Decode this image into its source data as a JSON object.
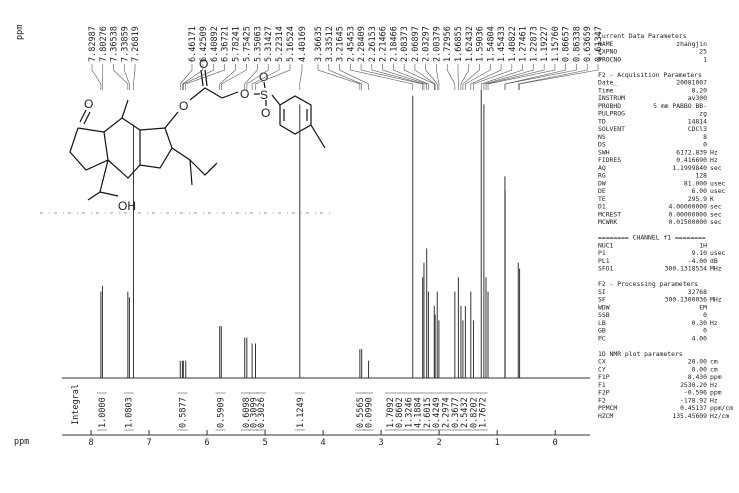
{
  "chart_data": {
    "type": "spectrum",
    "axis_label": "ppm",
    "xlim": [
      8.5,
      -0.6
    ],
    "xticks": [
      8,
      7,
      6,
      5,
      4,
      3,
      2,
      1,
      0
    ],
    "peak_ppm": [
      7.82987,
      7.80276,
      7.36538,
      7.33859,
      7.26819,
      6.46171,
      6.42509,
      6.40892,
      6.36721,
      5.78241,
      5.75425,
      5.35063,
      5.31427,
      5.22314,
      5.16524,
      4.40169,
      3.36635,
      3.33512,
      3.21645,
      2.45453,
      2.28409,
      2.26153,
      2.21466,
      2.18466,
      2.08373,
      2.06897,
      2.03297,
      2.00379,
      1.72956,
      1.66855,
      1.62432,
      1.59036,
      1.54804,
      1.45433,
      1.40822,
      1.27461,
      1.22873,
      1.19227,
      1.1576,
      0.86657,
      0.86338,
      0.63659,
      0.61347
    ],
    "peak_labels": [
      "7.82987",
      "7.80276",
      "7.36538",
      "7.33859",
      "7.26819",
      "6.46171",
      "6.42509",
      "6.40892",
      "6.36721",
      "5.78241",
      "5.75425",
      "5.35063",
      "5.31427",
      "5.22314",
      "5.16524",
      "4.40169",
      "3.36635",
      "3.33512",
      "3.21645",
      "2.45453",
      "2.28409",
      "2.26153",
      "2.21466",
      "2.18466",
      "2.08373",
      "2.06897",
      "2.03297",
      "2.00379",
      "1.72956",
      "1.66855",
      "1.62432",
      "1.59036",
      "1.54804",
      "1.45433",
      "1.40822",
      "1.27461",
      "1.22873",
      "1.19227",
      "1.15760",
      "0.86657",
      "0.86338",
      "0.63659",
      "0.61347"
    ],
    "peak_heights": [
      30,
      32,
      30,
      28,
      88,
      6,
      6,
      6,
      6,
      18,
      18,
      14,
      14,
      12,
      12,
      95,
      10,
      10,
      6,
      98,
      35,
      40,
      45,
      30,
      25,
      22,
      30,
      20,
      30,
      35,
      25,
      20,
      25,
      30,
      20,
      100,
      95,
      35,
      30,
      70,
      65,
      40,
      38
    ],
    "color": "#333333",
    "integral_title": "Integral",
    "integral_ppm": [
      7.81,
      7.35,
      6.42,
      5.77,
      5.33,
      5.2,
      5.07,
      4.4,
      3.36,
      3.22,
      2.85,
      2.69,
      2.53,
      2.37,
      2.21,
      2.05,
      1.89,
      1.73,
      1.57,
      1.41,
      1.25
    ],
    "integral_labels": [
      "1.0000",
      "1.0803",
      "0.5877",
      "0.5909",
      "0.6098",
      "0.3099",
      "0.3026",
      "1.1249",
      "0.5565",
      "0.0990",
      "1.7092",
      "0.8602",
      "1.3246",
      "4.1884",
      "2.6015",
      "0.4249",
      "2.2974",
      "0.3677",
      "2.5432",
      "0.8202",
      "1.7672"
    ]
  },
  "structure": {
    "atoms": [
      "O",
      "O",
      "O",
      "S",
      "O",
      "O",
      "OH"
    ]
  },
  "parameters": [
    {
      "title": "Current Data Parameters",
      "rows": [
        [
          "NAME",
          "zhangjin"
        ],
        [
          "EXPNO",
          "25"
        ],
        [
          "PROCNO",
          "1"
        ]
      ]
    },
    {
      "title": "F2 - Acquisition Parameters",
      "rows": [
        [
          "Date_",
          "20081007"
        ],
        [
          "Time",
          "8.20"
        ],
        [
          "INSTRUM",
          "av300"
        ],
        [
          "PROBHD",
          "5 mm PABBO BB-"
        ],
        [
          "PULPROG",
          "zg"
        ],
        [
          "TD",
          "14814"
        ],
        [
          "SOLVENT",
          "CDCl3"
        ],
        [
          "NS",
          "8"
        ],
        [
          "DS",
          "0"
        ],
        [
          "SWH",
          "6172.839",
          "Hz"
        ],
        [
          "FIDRES",
          "0.416690",
          "Hz"
        ],
        [
          "AQ",
          "1.1999840",
          "sec"
        ],
        [
          "RG",
          "128"
        ],
        [
          "DW",
          "81.000",
          "usec"
        ],
        [
          "DE",
          "6.00",
          "usec"
        ],
        [
          "TE",
          "295.9",
          "K"
        ],
        [
          "D1",
          "4.00000000",
          "sec"
        ],
        [
          "MCREST",
          "0.00000000",
          "sec"
        ],
        [
          "MCWRK",
          "0.01500000",
          "sec"
        ]
      ]
    },
    {
      "title": "======== CHANNEL f1 ========",
      "rows": [
        [
          "NUC1",
          "1H"
        ],
        [
          "P1",
          "9.10",
          "usec"
        ],
        [
          "PL1",
          "-4.00",
          "dB"
        ],
        [
          "SFO1",
          "300.1318534",
          "MHz"
        ]
      ]
    },
    {
      "title": "F2 - Processing parameters",
      "rows": [
        [
          "SI",
          "32768"
        ],
        [
          "SF",
          "300.1300036",
          "MHz"
        ],
        [
          "WDW",
          "EM"
        ],
        [
          "SSB",
          "0"
        ],
        [
          "LB",
          "0.30",
          "Hz"
        ],
        [
          "GB",
          "0"
        ],
        [
          "PC",
          "4.00"
        ]
      ]
    },
    {
      "title": "1D NMR plot parameters",
      "rows": [
        [
          "CX",
          "20.00",
          "cm"
        ],
        [
          "CY",
          "0.00",
          "cm"
        ],
        [
          "F1P",
          "8.430",
          "ppm"
        ],
        [
          "F1",
          "2530.20",
          "Hz"
        ],
        [
          "F2P",
          "-0.596",
          "ppm"
        ],
        [
          "F2",
          "-178.92",
          "Hz"
        ],
        [
          "PPMCM",
          "0.45137",
          "ppm/cm"
        ],
        [
          "HZCM",
          "135.45609",
          "Hz/cm"
        ]
      ]
    }
  ]
}
